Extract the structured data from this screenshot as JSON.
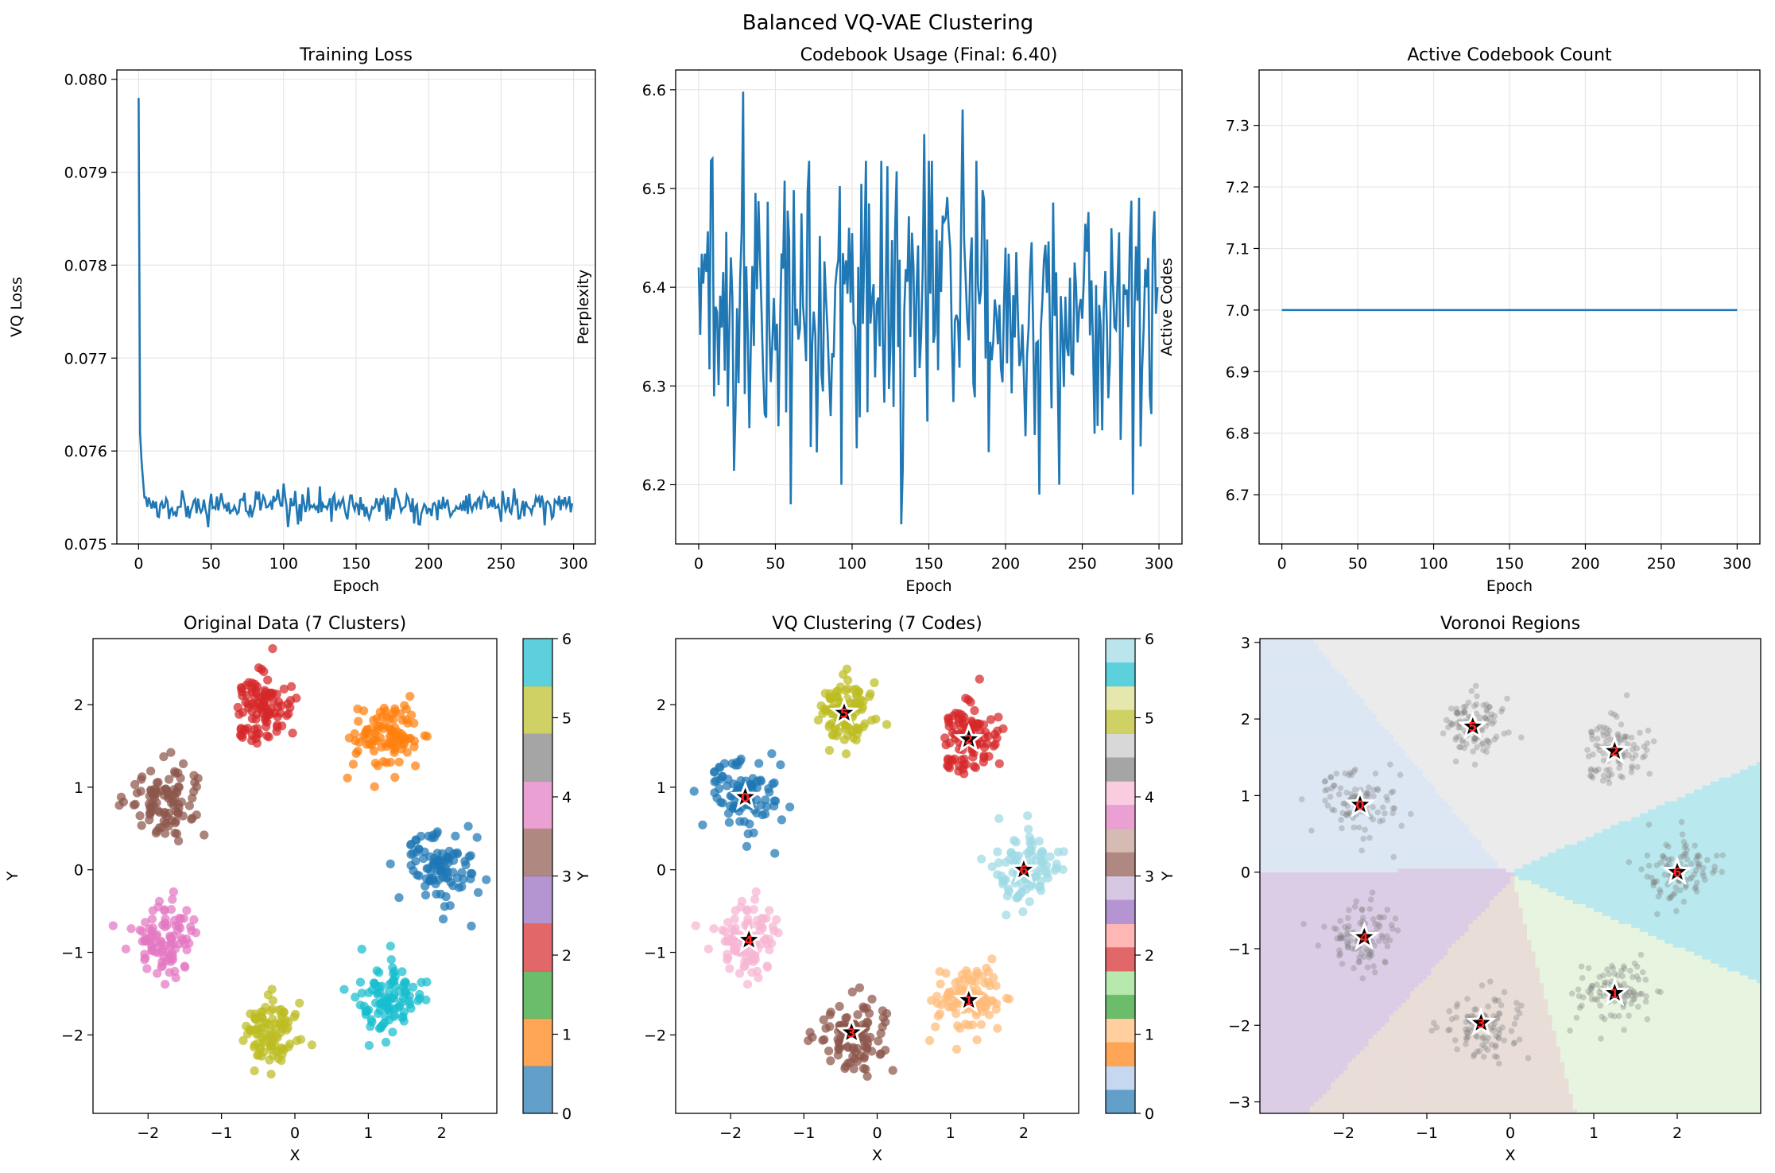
{
  "figure": {
    "title": "Balanced VQ-VAE Clustering"
  },
  "colors": {
    "line": "#1f77b4",
    "grid": "#e6e6e6",
    "tab10": [
      "#1f77b4",
      "#ff7f0e",
      "#d62728",
      "#8c564b",
      "#e377c2",
      "#bcbd22",
      "#17becf"
    ],
    "tab10_ticks": [
      "#1f77b4",
      "#ff7f0e",
      "#2ca02c",
      "#d62728",
      "#9467bd",
      "#8c564b",
      "#e377c2",
      "#7f7f7f",
      "#bcbd22",
      "#17becf"
    ],
    "tab20": [
      "#1f77b4",
      "#aec7e8",
      "#ff7f0e",
      "#ffbb78",
      "#2ca02c",
      "#98df8a",
      "#d62728",
      "#ff9896",
      "#9467bd",
      "#c5b0d5",
      "#8c564b",
      "#c49c94",
      "#e377c2",
      "#f7b6d2",
      "#7f7f7f",
      "#c7c7c7",
      "#bcbd22",
      "#dbdb8d",
      "#17becf",
      "#9edae5"
    ],
    "codes": [
      "#1f77b4",
      "#ffbb78",
      "#d62728",
      "#8c564b",
      "#f7b6d2",
      "#bcbd22",
      "#9edae5"
    ],
    "voronoi": [
      "#dde7f4",
      "#e7f4df",
      "#ebebeb",
      "#e9ddd8",
      "#dccde6",
      "#ebebeb",
      "#b9e8ee"
    ]
  },
  "chart_data": [
    {
      "type": "line",
      "title": "Training Loss",
      "xlabel": "Epoch",
      "ylabel": "VQ Loss",
      "xlim": [
        -15,
        315
      ],
      "ylim": [
        0.075,
        0.0801
      ],
      "xticks": [
        0,
        50,
        100,
        150,
        200,
        250,
        300
      ],
      "yticks": [
        0.075,
        0.076,
        0.077,
        0.078,
        0.079,
        0.08
      ],
      "ytick_labels": [
        "0.075",
        "0.076",
        "0.077",
        "0.078",
        "0.079",
        "0.080"
      ],
      "grid": true,
      "series": [
        {
          "x_start": 0,
          "head": [
            0.0798,
            0.0762,
            0.0759,
            0.0757,
            0.0755,
            0.0755,
            0.0754,
            0.0755
          ],
          "tail_mean": 0.07541,
          "tail_noise": 0.00012,
          "n_points": 300,
          "peaks": [
            [
              48,
              0.07518
            ],
            [
              100,
              0.07565
            ],
            [
              110,
              0.07521
            ],
            [
              190,
              0.07522
            ],
            [
              250,
              0.07524
            ],
            [
              280,
              0.0752
            ]
          ]
        }
      ]
    },
    {
      "type": "line",
      "title": "Codebook Usage (Final: 6.40)",
      "xlabel": "Epoch",
      "ylabel": "Perplexity",
      "xlim": [
        -15,
        315
      ],
      "ylim": [
        6.14,
        6.62
      ],
      "xticks": [
        0,
        50,
        100,
        150,
        200,
        250,
        300
      ],
      "yticks": [
        6.2,
        6.3,
        6.4,
        6.5,
        6.6
      ],
      "ytick_labels": [
        "6.2",
        "6.3",
        "6.4",
        "6.5",
        "6.6"
      ],
      "grid": true,
      "series": [
        {
          "x_start": 0,
          "mean": 6.375,
          "noise": 0.07,
          "n_points": 300,
          "min": 6.16,
          "max": 6.598,
          "final": 6.4,
          "peaks": [
            [
              29,
              6.598
            ],
            [
              9,
              6.53
            ],
            [
              60,
              6.18
            ],
            [
              93,
              6.2
            ],
            [
              132,
              6.16
            ],
            [
              172,
              6.58
            ],
            [
              222,
              6.19
            ],
            [
              283,
              6.19
            ],
            [
              147,
              6.555
            ]
          ]
        }
      ]
    },
    {
      "type": "line",
      "title": "Active Codebook Count",
      "xlabel": "Epoch",
      "ylabel": "Active Codes",
      "xlim": [
        -15,
        315
      ],
      "ylim": [
        6.62,
        7.39
      ],
      "xticks": [
        0,
        50,
        100,
        150,
        200,
        250,
        300
      ],
      "yticks": [
        6.7,
        6.8,
        6.9,
        7.0,
        7.1,
        7.2,
        7.3
      ],
      "ytick_labels": [
        "6.7",
        "6.8",
        "6.9",
        "7.0",
        "7.1",
        "7.2",
        "7.3"
      ],
      "grid": true,
      "series": [
        {
          "x": [
            0,
            300
          ],
          "y": [
            7.0,
            7.0
          ]
        }
      ]
    },
    {
      "type": "scatter",
      "title": "Original Data (7 Clusters)",
      "xlabel": "X",
      "ylabel": "Y",
      "xlim": [
        -2.75,
        2.75
      ],
      "ylim": [
        -2.95,
        2.8
      ],
      "xticks": [
        -2,
        -1,
        0,
        1,
        2
      ],
      "yticks": [
        -2,
        -1,
        0,
        1,
        2
      ],
      "xtick_labels": [
        "−2",
        "−1",
        "0",
        "1",
        "2"
      ],
      "ytick_labels": [
        "−2",
        "−1",
        "0",
        "1",
        "2"
      ],
      "colorbar": {
        "ticks": [
          0,
          1,
          2,
          3,
          4,
          5,
          6
        ],
        "colormap": "tab10"
      },
      "clusters": [
        {
          "label": 0,
          "center": [
            2.0,
            0.0
          ],
          "n": 100
        },
        {
          "label": 1,
          "center": [
            1.25,
            1.6
          ],
          "n": 100
        },
        {
          "label": 2,
          "center": [
            -0.45,
            1.95
          ],
          "n": 100
        },
        {
          "label": 3,
          "center": [
            -1.8,
            0.88
          ],
          "n": 100
        },
        {
          "label": 4,
          "center": [
            -1.75,
            -0.85
          ],
          "n": 100
        },
        {
          "label": 5,
          "center": [
            -0.35,
            -1.98
          ],
          "n": 100
        },
        {
          "label": 6,
          "center": [
            1.25,
            -1.58
          ],
          "n": 100
        }
      ],
      "spread": 0.22
    },
    {
      "type": "scatter",
      "title": "VQ Clustering (7 Codes)",
      "xlabel": "X",
      "ylabel": "Y",
      "xlim": [
        -2.75,
        2.75
      ],
      "ylim": [
        -2.95,
        2.8
      ],
      "xticks": [
        -2,
        -1,
        0,
        1,
        2
      ],
      "yticks": [
        -2,
        -1,
        0,
        1,
        2
      ],
      "xtick_labels": [
        "−2",
        "−1",
        "0",
        "1",
        "2"
      ],
      "ytick_labels": [
        "−2",
        "−1",
        "0",
        "1",
        "2"
      ],
      "colorbar": {
        "ticks": [
          0,
          1,
          2,
          3,
          4,
          5,
          6
        ],
        "colormap": "tab20"
      },
      "codebook": [
        {
          "code": "0",
          "center": [
            -1.8,
            0.88
          ]
        },
        {
          "code": "1",
          "center": [
            1.25,
            -1.58
          ]
        },
        {
          "code": "2",
          "center": [
            1.25,
            1.58
          ]
        },
        {
          "code": "3",
          "center": [
            -0.35,
            -1.97
          ]
        },
        {
          "code": "4",
          "center": [
            -1.75,
            -0.85
          ]
        },
        {
          "code": "5",
          "center": [
            -0.45,
            1.9
          ]
        },
        {
          "code": "6",
          "center": [
            2.0,
            0.0
          ]
        }
      ],
      "spread": 0.22
    },
    {
      "type": "scatter",
      "title": "Voronoi Regions",
      "xlabel": "X",
      "ylabel": "Y",
      "xlim": [
        -3.0,
        3.0
      ],
      "ylim": [
        -3.15,
        3.05
      ],
      "xticks": [
        -2,
        -1,
        0,
        1,
        2
      ],
      "yticks": [
        -3,
        -2,
        -1,
        0,
        1,
        2,
        3
      ],
      "xtick_labels": [
        "−2",
        "−1",
        "0",
        "1",
        "2"
      ],
      "ytick_labels": [
        "−3",
        "−2",
        "−1",
        "0",
        "1",
        "2",
        "3"
      ],
      "codebook": [
        {
          "code": "0",
          "center": [
            -1.8,
            0.88
          ]
        },
        {
          "code": "1",
          "center": [
            1.25,
            -1.58
          ]
        },
        {
          "code": "2",
          "center": [
            1.25,
            1.58
          ]
        },
        {
          "code": "3",
          "center": [
            -0.35,
            -1.97
          ]
        },
        {
          "code": "4",
          "center": [
            -1.75,
            -0.85
          ]
        },
        {
          "code": "5",
          "center": [
            -0.45,
            1.9
          ]
        },
        {
          "code": "6",
          "center": [
            2.0,
            0.0
          ]
        }
      ],
      "spread": 0.22
    }
  ]
}
